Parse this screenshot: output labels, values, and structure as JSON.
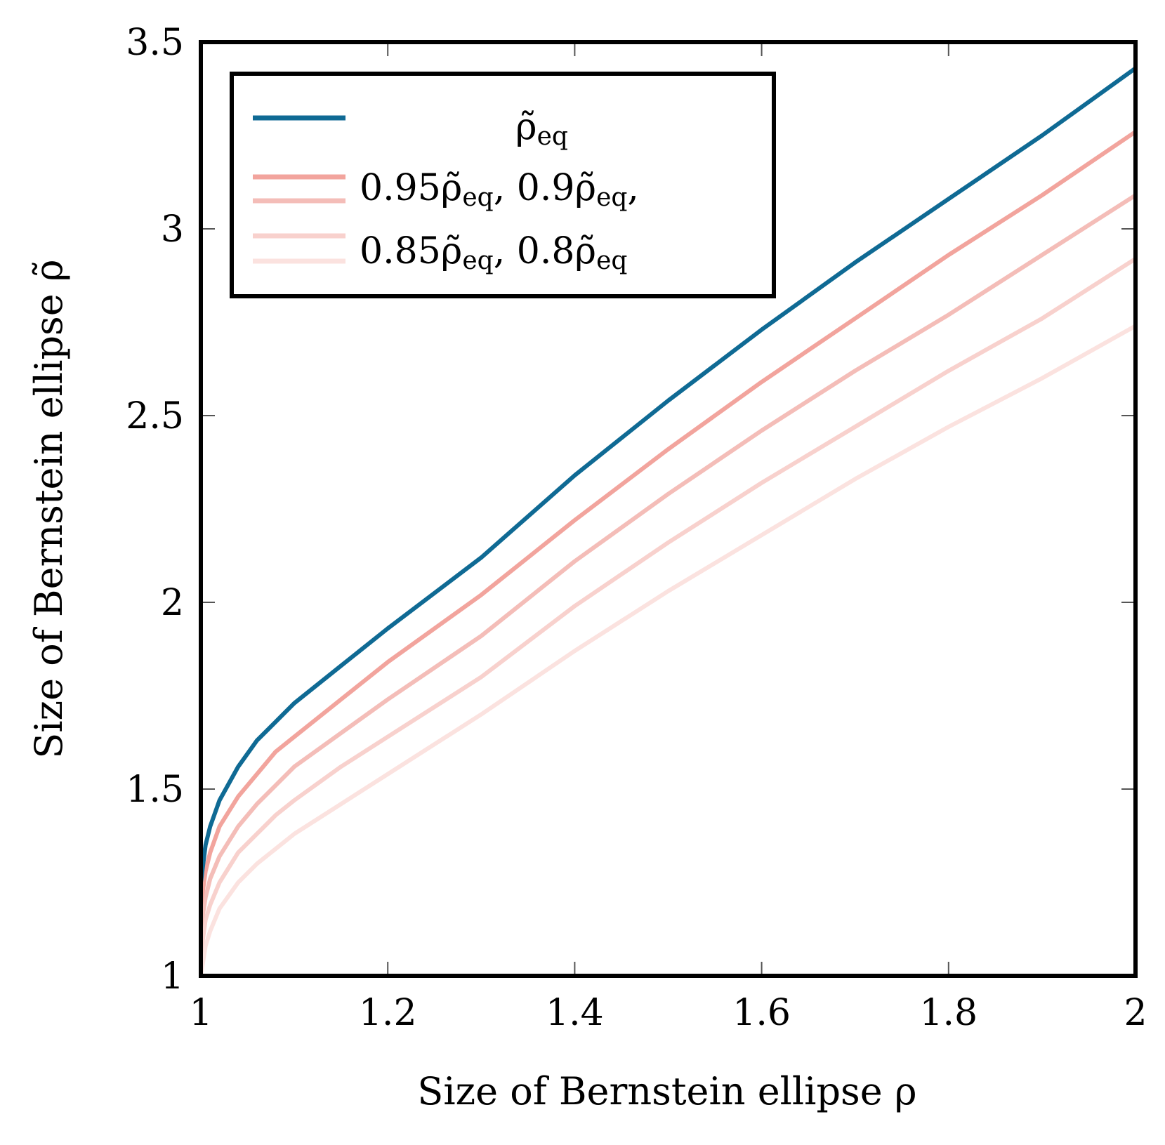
{
  "chart_data": {
    "type": "line",
    "xlabel": "Size of Bernstein ellipse ρ",
    "ylabel": "Size of Bernstein ellipse ρ̃",
    "xlim": [
      1,
      2
    ],
    "ylim": [
      1,
      3.5
    ],
    "x_ticks": [
      "1",
      "1.2",
      "1.4",
      "1.6",
      "1.8",
      "2"
    ],
    "y_ticks": [
      "1",
      "1.5",
      "2",
      "2.5",
      "3",
      "3.5"
    ],
    "grid": false,
    "legend_position": "top-left",
    "x": [
      1.0,
      1.005,
      1.01,
      1.02,
      1.04,
      1.06,
      1.08,
      1.1,
      1.15,
      1.2,
      1.3,
      1.4,
      1.5,
      1.6,
      1.7,
      1.8,
      1.9,
      2.0
    ],
    "series": [
      {
        "name": "ρ̃eq",
        "color": "#0f6a94",
        "values": [
          1.25,
          1.35,
          1.4,
          1.47,
          1.56,
          1.63,
          1.68,
          1.73,
          1.83,
          1.93,
          2.12,
          2.34,
          2.54,
          2.73,
          2.91,
          3.08,
          3.25,
          3.43
        ]
      },
      {
        "name": "0.95ρ̃eq",
        "color": "#f2a49d",
        "values": [
          1.19,
          1.28,
          1.33,
          1.4,
          1.48,
          1.54,
          1.6,
          1.64,
          1.74,
          1.84,
          2.02,
          2.22,
          2.41,
          2.59,
          2.76,
          2.93,
          3.09,
          3.26
        ]
      },
      {
        "name": "0.9ρ̃eq",
        "color": "#f4bdb8",
        "values": [
          1.13,
          1.21,
          1.26,
          1.32,
          1.4,
          1.46,
          1.51,
          1.56,
          1.65,
          1.74,
          1.91,
          2.11,
          2.29,
          2.46,
          2.62,
          2.77,
          2.93,
          3.09
        ]
      },
      {
        "name": "0.85ρ̃eq",
        "color": "#f8d1cd",
        "values": [
          1.06,
          1.15,
          1.19,
          1.25,
          1.33,
          1.38,
          1.43,
          1.47,
          1.56,
          1.64,
          1.8,
          1.99,
          2.16,
          2.32,
          2.47,
          2.62,
          2.76,
          2.92
        ]
      },
      {
        "name": "0.8ρ̃eq",
        "color": "#fbe2df",
        "values": [
          1.0,
          1.08,
          1.12,
          1.18,
          1.25,
          1.3,
          1.34,
          1.38,
          1.46,
          1.54,
          1.7,
          1.87,
          2.03,
          2.18,
          2.33,
          2.47,
          2.6,
          2.74
        ]
      }
    ],
    "legend_rows": [
      {
        "main": "ρ̃",
        "sub": "eq"
      },
      {
        "a": "0.95ρ̃",
        "a_sub": "eq",
        "sep": ", ",
        "b": "0.9ρ̃",
        "b_sub": "eq",
        "end": ","
      },
      {
        "a": "0.85ρ̃",
        "a_sub": "eq",
        "sep": ", ",
        "b": "0.8ρ̃",
        "b_sub": "eq",
        "end": ""
      }
    ]
  }
}
